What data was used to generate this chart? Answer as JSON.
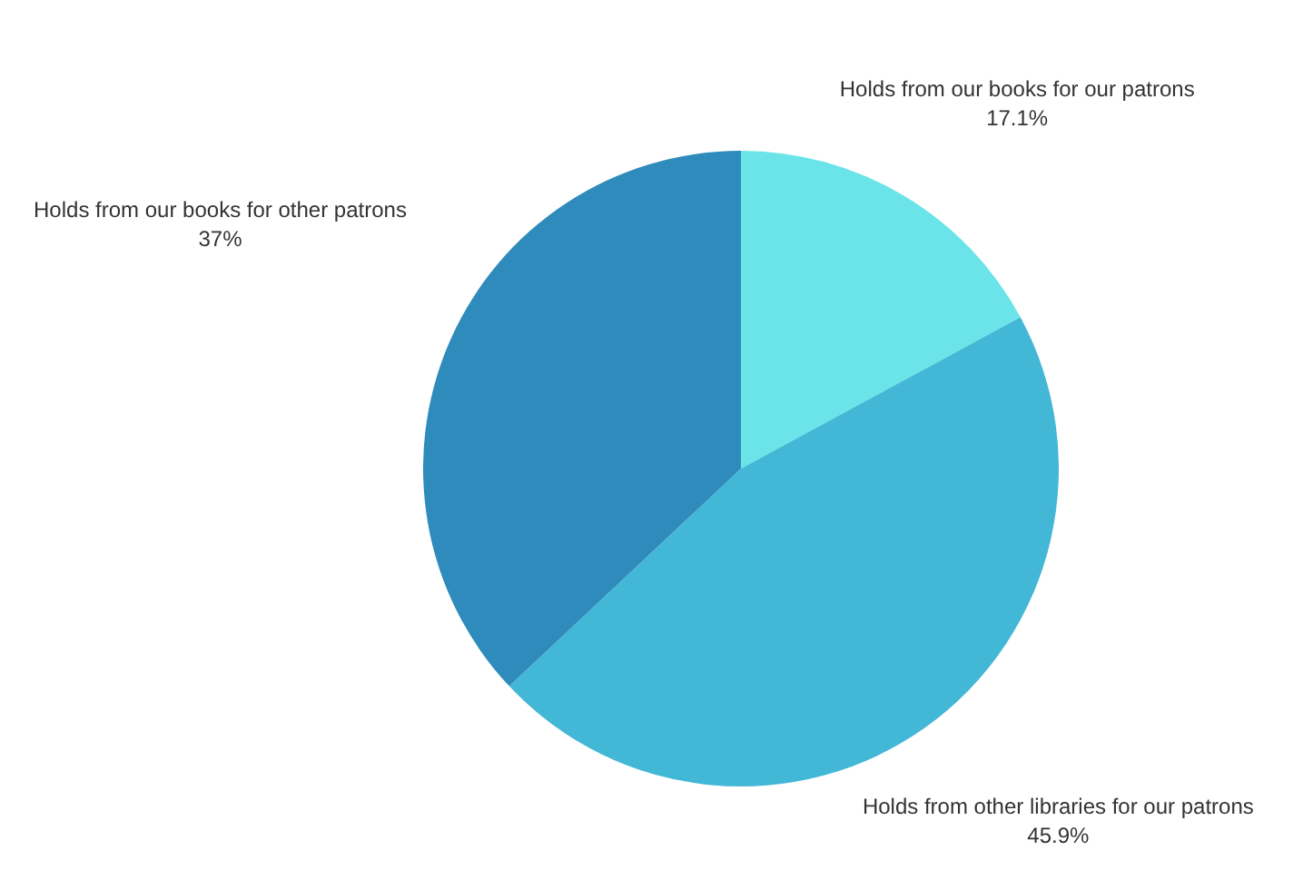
{
  "chart_data": {
    "type": "pie",
    "categories": [
      "Holds from our books for our patrons",
      "Holds from other libraries for our patrons",
      "Holds from our books for other patrons"
    ],
    "values": [
      17.1,
      45.9,
      37
    ],
    "value_labels": [
      "17.1%",
      "45.9%",
      "37%"
    ],
    "colors": [
      "#6ae4e8",
      "#42b7d6",
      "#2e8bbb"
    ],
    "legend": false
  }
}
